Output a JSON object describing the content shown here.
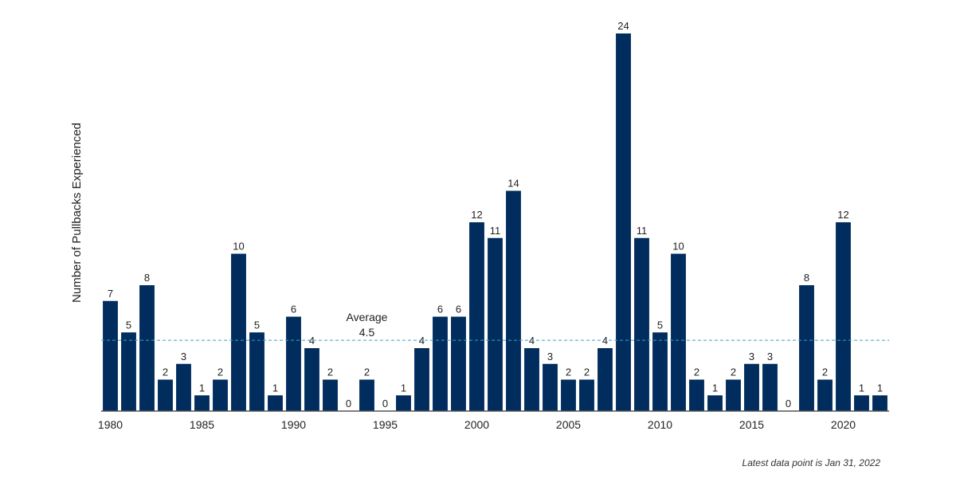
{
  "chart_data": {
    "type": "bar",
    "title": "",
    "xlabel": "",
    "ylabel": "Number of Pullbacks Experienced",
    "x": [
      1980,
      1981,
      1982,
      1983,
      1984,
      1985,
      1986,
      1987,
      1988,
      1989,
      1990,
      1991,
      1992,
      1993,
      1994,
      1995,
      1996,
      1997,
      1998,
      1999,
      2000,
      2001,
      2002,
      2003,
      2004,
      2005,
      2006,
      2007,
      2008,
      2009,
      2010,
      2011,
      2012,
      2013,
      2014,
      2015,
      2016,
      2017,
      2018,
      2019,
      2020,
      2021,
      2022
    ],
    "values": [
      7,
      5,
      8,
      2,
      3,
      1,
      2,
      10,
      5,
      1,
      6,
      4,
      2,
      0,
      2,
      0,
      1,
      4,
      6,
      6,
      12,
      11,
      14,
      4,
      3,
      2,
      2,
      4,
      24,
      11,
      5,
      10,
      2,
      1,
      2,
      3,
      3,
      0,
      8,
      2,
      12,
      1,
      1
    ],
    "xticks": [
      1980,
      1985,
      1990,
      1995,
      2000,
      2005,
      2010,
      2015,
      2020
    ],
    "ylim": [
      0,
      24
    ],
    "average": {
      "label": "Average",
      "value": 4.5,
      "value_label": "4.5"
    },
    "bar_color": "#002d5e",
    "average_line_color": "#3aa0c8",
    "grid": false
  },
  "footnote": "Latest data point is Jan 31, 2022"
}
